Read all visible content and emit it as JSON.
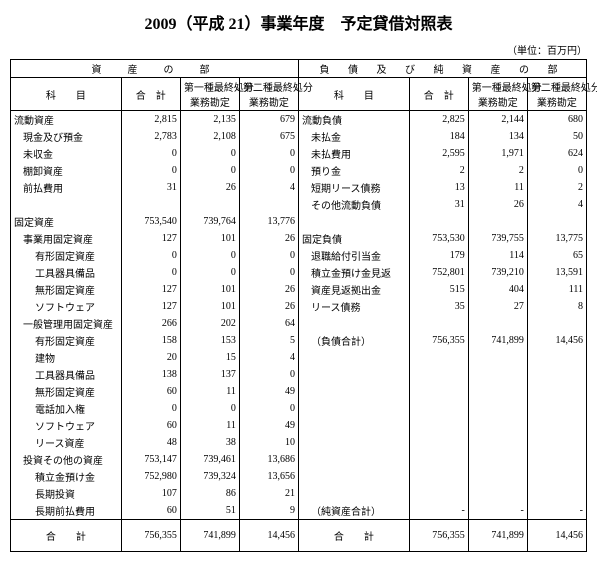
{
  "title": "2009（平成 21）事業年度　予定貸借対照表",
  "unit": "（単位：百万円）",
  "headers": {
    "left_section": "資　産　の　部",
    "right_section": "負 債 及 び 純 資 産 の 部",
    "item": "科　　目",
    "total": "合　計",
    "sub1": "第一種最終処分\n業務勘定",
    "sub2": "第二種最終処分\n業務勘定"
  },
  "left_rows": [
    {
      "label": "流動資産",
      "indent": 0,
      "vals": [
        "2,815",
        "2,135",
        "679"
      ]
    },
    {
      "label": "現金及び預金",
      "indent": 1,
      "vals": [
        "2,783",
        "2,108",
        "675"
      ]
    },
    {
      "label": "未収金",
      "indent": 1,
      "vals": [
        "0",
        "0",
        "0"
      ]
    },
    {
      "label": "棚卸資産",
      "indent": 1,
      "vals": [
        "0",
        "0",
        "0"
      ]
    },
    {
      "label": "前払費用",
      "indent": 1,
      "vals": [
        "31",
        "26",
        "4"
      ]
    },
    {
      "label": "",
      "indent": 0,
      "vals": [
        "",
        "",
        ""
      ]
    },
    {
      "label": "固定資産",
      "indent": 0,
      "vals": [
        "753,540",
        "739,764",
        "13,776"
      ]
    },
    {
      "label": "事業用固定資産",
      "indent": 1,
      "vals": [
        "127",
        "101",
        "26"
      ]
    },
    {
      "label": "有形固定資産",
      "indent": 2,
      "vals": [
        "0",
        "0",
        "0"
      ]
    },
    {
      "label": "工具器具備品",
      "indent": 2,
      "vals": [
        "0",
        "0",
        "0"
      ]
    },
    {
      "label": "無形固定資産",
      "indent": 2,
      "vals": [
        "127",
        "101",
        "26"
      ]
    },
    {
      "label": "ソフトウェア",
      "indent": 2,
      "vals": [
        "127",
        "101",
        "26"
      ]
    },
    {
      "label": "一般管理用固定資産",
      "indent": 1,
      "vals": [
        "266",
        "202",
        "64"
      ]
    },
    {
      "label": "有形固定資産",
      "indent": 2,
      "vals": [
        "158",
        "153",
        "5"
      ]
    },
    {
      "label": "建物",
      "indent": 2,
      "vals": [
        "20",
        "15",
        "4"
      ]
    },
    {
      "label": "工具器具備品",
      "indent": 2,
      "vals": [
        "138",
        "137",
        "0"
      ]
    },
    {
      "label": "無形固定資産",
      "indent": 2,
      "vals": [
        "60",
        "11",
        "49"
      ]
    },
    {
      "label": "電話加入権",
      "indent": 2,
      "vals": [
        "0",
        "0",
        "0"
      ]
    },
    {
      "label": "ソフトウェア",
      "indent": 2,
      "vals": [
        "60",
        "11",
        "49"
      ]
    },
    {
      "label": "リース資産",
      "indent": 2,
      "vals": [
        "48",
        "38",
        "10"
      ]
    },
    {
      "label": "投資その他の資産",
      "indent": 1,
      "vals": [
        "753,147",
        "739,461",
        "13,686"
      ]
    },
    {
      "label": "積立金預け金",
      "indent": 2,
      "vals": [
        "752,980",
        "739,324",
        "13,656"
      ]
    },
    {
      "label": "長期投資",
      "indent": 2,
      "vals": [
        "107",
        "86",
        "21"
      ]
    },
    {
      "label": "長期前払費用",
      "indent": 2,
      "vals": [
        "60",
        "51",
        "9"
      ]
    }
  ],
  "right_rows": [
    {
      "label": "流動負債",
      "indent": 0,
      "vals": [
        "2,825",
        "2,144",
        "680"
      ]
    },
    {
      "label": "未払金",
      "indent": 1,
      "vals": [
        "184",
        "134",
        "50"
      ]
    },
    {
      "label": "未払費用",
      "indent": 1,
      "vals": [
        "2,595",
        "1,971",
        "624"
      ]
    },
    {
      "label": "預り金",
      "indent": 1,
      "vals": [
        "2",
        "2",
        "0"
      ]
    },
    {
      "label": "短期リース債務",
      "indent": 1,
      "vals": [
        "13",
        "11",
        "2"
      ]
    },
    {
      "label": "その他流動負債",
      "indent": 1,
      "vals": [
        "31",
        "26",
        "4"
      ]
    },
    {
      "label": "",
      "indent": 0,
      "vals": [
        "",
        "",
        ""
      ]
    },
    {
      "label": "固定負債",
      "indent": 0,
      "vals": [
        "753,530",
        "739,755",
        "13,775"
      ]
    },
    {
      "label": "退職給付引当金",
      "indent": 1,
      "vals": [
        "179",
        "114",
        "65"
      ]
    },
    {
      "label": "積立金預け金見返",
      "indent": 1,
      "vals": [
        "752,801",
        "739,210",
        "13,591"
      ]
    },
    {
      "label": "資産見返拠出金",
      "indent": 1,
      "vals": [
        "515",
        "404",
        "111"
      ]
    },
    {
      "label": "リース債務",
      "indent": 1,
      "vals": [
        "35",
        "27",
        "8"
      ]
    },
    {
      "label": "",
      "indent": 0,
      "vals": [
        "",
        "",
        ""
      ]
    },
    {
      "label": "（負債合計）",
      "indent": 1,
      "vals": [
        "756,355",
        "741,899",
        "14,456"
      ]
    },
    {
      "label": "",
      "indent": 0,
      "vals": [
        "",
        "",
        ""
      ]
    },
    {
      "label": "",
      "indent": 0,
      "vals": [
        "",
        "",
        ""
      ]
    },
    {
      "label": "",
      "indent": 0,
      "vals": [
        "",
        "",
        ""
      ]
    },
    {
      "label": "",
      "indent": 0,
      "vals": [
        "",
        "",
        ""
      ]
    },
    {
      "label": "",
      "indent": 0,
      "vals": [
        "",
        "",
        ""
      ]
    },
    {
      "label": "",
      "indent": 0,
      "vals": [
        "",
        "",
        ""
      ]
    },
    {
      "label": "",
      "indent": 0,
      "vals": [
        "",
        "",
        ""
      ]
    },
    {
      "label": "",
      "indent": 0,
      "vals": [
        "",
        "",
        ""
      ]
    },
    {
      "label": "",
      "indent": 0,
      "vals": [
        "",
        "",
        ""
      ]
    },
    {
      "label": "（純資産合計）",
      "indent": 1,
      "vals": [
        "‐",
        "‐",
        "‐"
      ]
    }
  ],
  "footer": {
    "left_label": "合　　計",
    "right_label": "合　　計",
    "left_vals": [
      "756,355",
      "741,899",
      "14,456"
    ],
    "right_vals": [
      "756,355",
      "741,899",
      "14,456"
    ]
  }
}
